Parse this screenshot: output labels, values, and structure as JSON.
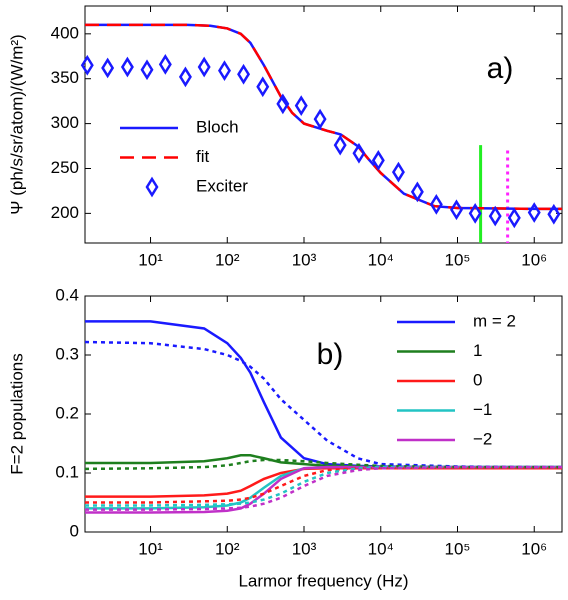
{
  "chart_data": [
    {
      "type": "line",
      "annotation": "a)",
      "ylabel": "Ψ  (ph/s/sr/atom)/(W/m²)",
      "xscale": "log",
      "legend": "center left",
      "xlim": [
        1.4,
        2300000
      ],
      "ylim": [
        167,
        431
      ],
      "xticks": [
        {
          "value": 10,
          "label": "10¹"
        },
        {
          "value": 100,
          "label": "10²"
        },
        {
          "value": 1000,
          "label": "10³"
        },
        {
          "value": 10000,
          "label": "10⁴"
        },
        {
          "value": 100000,
          "label": "10⁵"
        },
        {
          "value": 1000000,
          "label": "10⁶"
        }
      ],
      "yticks": [
        200,
        250,
        300,
        350,
        400
      ],
      "x": [
        1.4,
        3,
        10,
        30,
        60,
        100,
        150,
        200,
        300,
        500,
        700,
        1000,
        2000,
        3000,
        5000,
        7000,
        10000,
        20000,
        50000,
        100000,
        1000000,
        2300000
      ],
      "series": [
        {
          "name": "Bloch",
          "color": "#1a1aff",
          "values": [
            410,
            410,
            410,
            410,
            409,
            406,
            400,
            390,
            365,
            330,
            312,
            300,
            292,
            288,
            275,
            260,
            245,
            222,
            208,
            206,
            205,
            205
          ]
        },
        {
          "name": "fit",
          "color": "#ff0000",
          "dash": true,
          "values": [
            410,
            410,
            410,
            410,
            409,
            406,
            400,
            390,
            365,
            330,
            312,
            300,
            292,
            288,
            275,
            260,
            245,
            222,
            208,
            206,
            205,
            205
          ]
        },
        {
          "name": "Exciter",
          "color": "#1a1aff",
          "marker": "diamond",
          "x": [
            1.5,
            2.76,
            5,
            9,
            15.6,
            28.5,
            50,
            92,
            163,
            290,
            530,
            920,
            1620,
            2960,
            5200,
            9300,
            17000,
            30000,
            53000,
            97000,
            170000,
            310000,
            550000,
            1000000,
            1800000
          ],
          "values": [
            365,
            362,
            363,
            360,
            366,
            352,
            363,
            359,
            355,
            341,
            322,
            320,
            305,
            276,
            267,
            259,
            246,
            224,
            210,
            204,
            200,
            197,
            195,
            201,
            199
          ]
        }
      ],
      "vlines": [
        {
          "x": 200000,
          "top": 276,
          "color": "#22ee22"
        },
        {
          "x": 450000,
          "top": 270,
          "color": "#ff22ff",
          "dash": true
        }
      ]
    },
    {
      "type": "line",
      "annotation": "b)",
      "ylabel": "F=2 populations",
      "xlabel": "Larmor frequency (Hz)",
      "xscale": "log",
      "legend": "upper right",
      "xlim": [
        1.4,
        2300000
      ],
      "ylim": [
        0,
        0.4
      ],
      "xticks": [
        {
          "value": 10,
          "label": "10¹"
        },
        {
          "value": 100,
          "label": "10²"
        },
        {
          "value": 1000,
          "label": "10³"
        },
        {
          "value": 10000,
          "label": "10⁴"
        },
        {
          "value": 100000,
          "label": "10⁵"
        },
        {
          "value": 1000000,
          "label": "10⁶"
        }
      ],
      "yticks": [
        0,
        0.1,
        0.2,
        0.3,
        0.4
      ],
      "x": [
        1.4,
        10,
        50,
        100,
        150,
        200,
        300,
        500,
        1000,
        2000,
        5000,
        10000,
        100000,
        1000000,
        2300000
      ],
      "series": [
        {
          "name": "m = 2",
          "color": "#1a1aff",
          "values": [
            0.357,
            0.357,
            0.345,
            0.32,
            0.295,
            0.27,
            0.22,
            0.16,
            0.125,
            0.115,
            0.112,
            0.111,
            0.11,
            0.11,
            0.11
          ]
        },
        {
          "name": "1",
          "color": "#1e7f1e",
          "values": [
            0.117,
            0.117,
            0.12,
            0.125,
            0.13,
            0.13,
            0.125,
            0.118,
            0.115,
            0.112,
            0.111,
            0.11,
            0.11,
            0.11,
            0.11
          ]
        },
        {
          "name": "0",
          "color": "#ff1a1a",
          "values": [
            0.06,
            0.06,
            0.062,
            0.065,
            0.07,
            0.078,
            0.09,
            0.1,
            0.107,
            0.108,
            0.108,
            0.108,
            0.108,
            0.108,
            0.108
          ]
        },
        {
          "name": "−1",
          "color": "#22c4c4",
          "values": [
            0.04,
            0.04,
            0.042,
            0.045,
            0.05,
            0.058,
            0.075,
            0.095,
            0.108,
            0.11,
            0.11,
            0.11,
            0.11,
            0.11,
            0.11
          ]
        },
        {
          "name": "−2",
          "color": "#c030c8",
          "values": [
            0.033,
            0.033,
            0.034,
            0.036,
            0.04,
            0.048,
            0.065,
            0.09,
            0.108,
            0.11,
            0.11,
            0.11,
            0.11,
            0.11,
            0.11
          ]
        },
        {
          "color": "#1a1aff",
          "dash": true,
          "values": [
            0.322,
            0.32,
            0.31,
            0.3,
            0.29,
            0.28,
            0.26,
            0.225,
            0.19,
            0.155,
            0.125,
            0.115,
            0.111,
            0.11,
            0.11
          ]
        },
        {
          "color": "#1e7f1e",
          "dash": true,
          "values": [
            0.107,
            0.108,
            0.11,
            0.113,
            0.117,
            0.12,
            0.122,
            0.122,
            0.12,
            0.117,
            0.114,
            0.112,
            0.11,
            0.11,
            0.11
          ]
        },
        {
          "color": "#ff1a1a",
          "dash": true,
          "values": [
            0.05,
            0.05,
            0.052,
            0.053,
            0.055,
            0.058,
            0.065,
            0.078,
            0.095,
            0.105,
            0.108,
            0.108,
            0.108,
            0.108,
            0.108
          ]
        },
        {
          "color": "#22c4c4",
          "dash": true,
          "values": [
            0.045,
            0.045,
            0.046,
            0.047,
            0.048,
            0.05,
            0.055,
            0.065,
            0.085,
            0.1,
            0.108,
            0.11,
            0.11,
            0.11,
            0.11
          ]
        },
        {
          "color": "#c030c8",
          "dash": true,
          "values": [
            0.038,
            0.038,
            0.039,
            0.04,
            0.041,
            0.043,
            0.048,
            0.058,
            0.078,
            0.095,
            0.105,
            0.108,
            0.11,
            0.11,
            0.11
          ]
        }
      ]
    }
  ]
}
